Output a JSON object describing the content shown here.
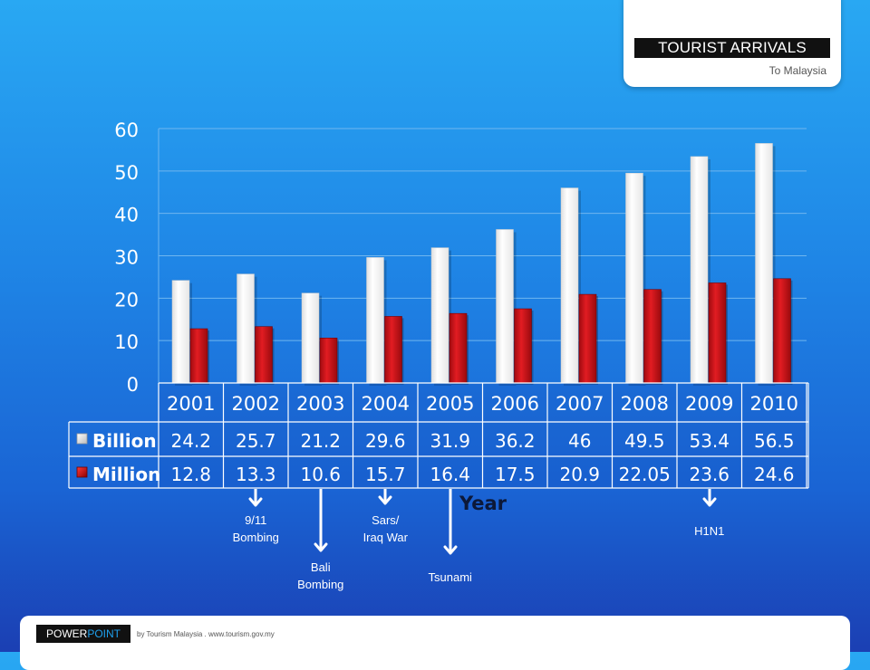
{
  "header": {
    "title": "TOURIST ARRIVALS",
    "subtitle": "To Malaysia"
  },
  "chart_data": {
    "type": "bar",
    "categories": [
      "2001",
      "2002",
      "2003",
      "2004",
      "2005",
      "2006",
      "2007",
      "2008",
      "2009",
      "2010"
    ],
    "series": [
      {
        "name": "Billion",
        "values": [
          24.2,
          25.7,
          21.2,
          29.6,
          31.9,
          36.2,
          46,
          49.5,
          53.4,
          56.5
        ],
        "labels": [
          "24.2",
          "25.7",
          "21.2",
          "29.6",
          "31.9",
          "36.2",
          "46",
          "49.5",
          "53.4",
          "56.5"
        ],
        "color": "#ffffff"
      },
      {
        "name": "Million",
        "values": [
          12.8,
          13.3,
          10.6,
          15.7,
          16.4,
          17.5,
          20.9,
          22.05,
          23.6,
          24.6
        ],
        "labels": [
          "12.8",
          "13.3",
          "10.6",
          "15.7",
          "16.4",
          "17.5",
          "20.9",
          "22.05",
          "23.6",
          "24.6"
        ],
        "color": "#d0141b"
      }
    ],
    "ylim": [
      0,
      60
    ],
    "yticks": [
      "0",
      "10",
      "20",
      "30",
      "40",
      "50",
      "60"
    ],
    "xlabel": "Year",
    "ylabel": "",
    "grid": true,
    "legend": "data-table"
  },
  "annotations": [
    {
      "label": "9/11\nBombing",
      "year": "2002"
    },
    {
      "label": "Bali\nBombing",
      "year": "2003"
    },
    {
      "label": "Sars/\nIraq War",
      "year": "2004"
    },
    {
      "label": "Tsunami",
      "year": "2005"
    },
    {
      "label": "H1N1",
      "year": "2009"
    }
  ],
  "footer": {
    "badge_part1": "POWER",
    "badge_part2": "POINT",
    "credit": "by Tourism Malaysia . www.tourism.gov.my"
  },
  "colors": {
    "background_top": "#29a8f3",
    "background_bottom": "#1b3fb3",
    "bar_white": "#ffffff",
    "bar_red": "#d0141b",
    "grid": "#6fb6ef"
  }
}
